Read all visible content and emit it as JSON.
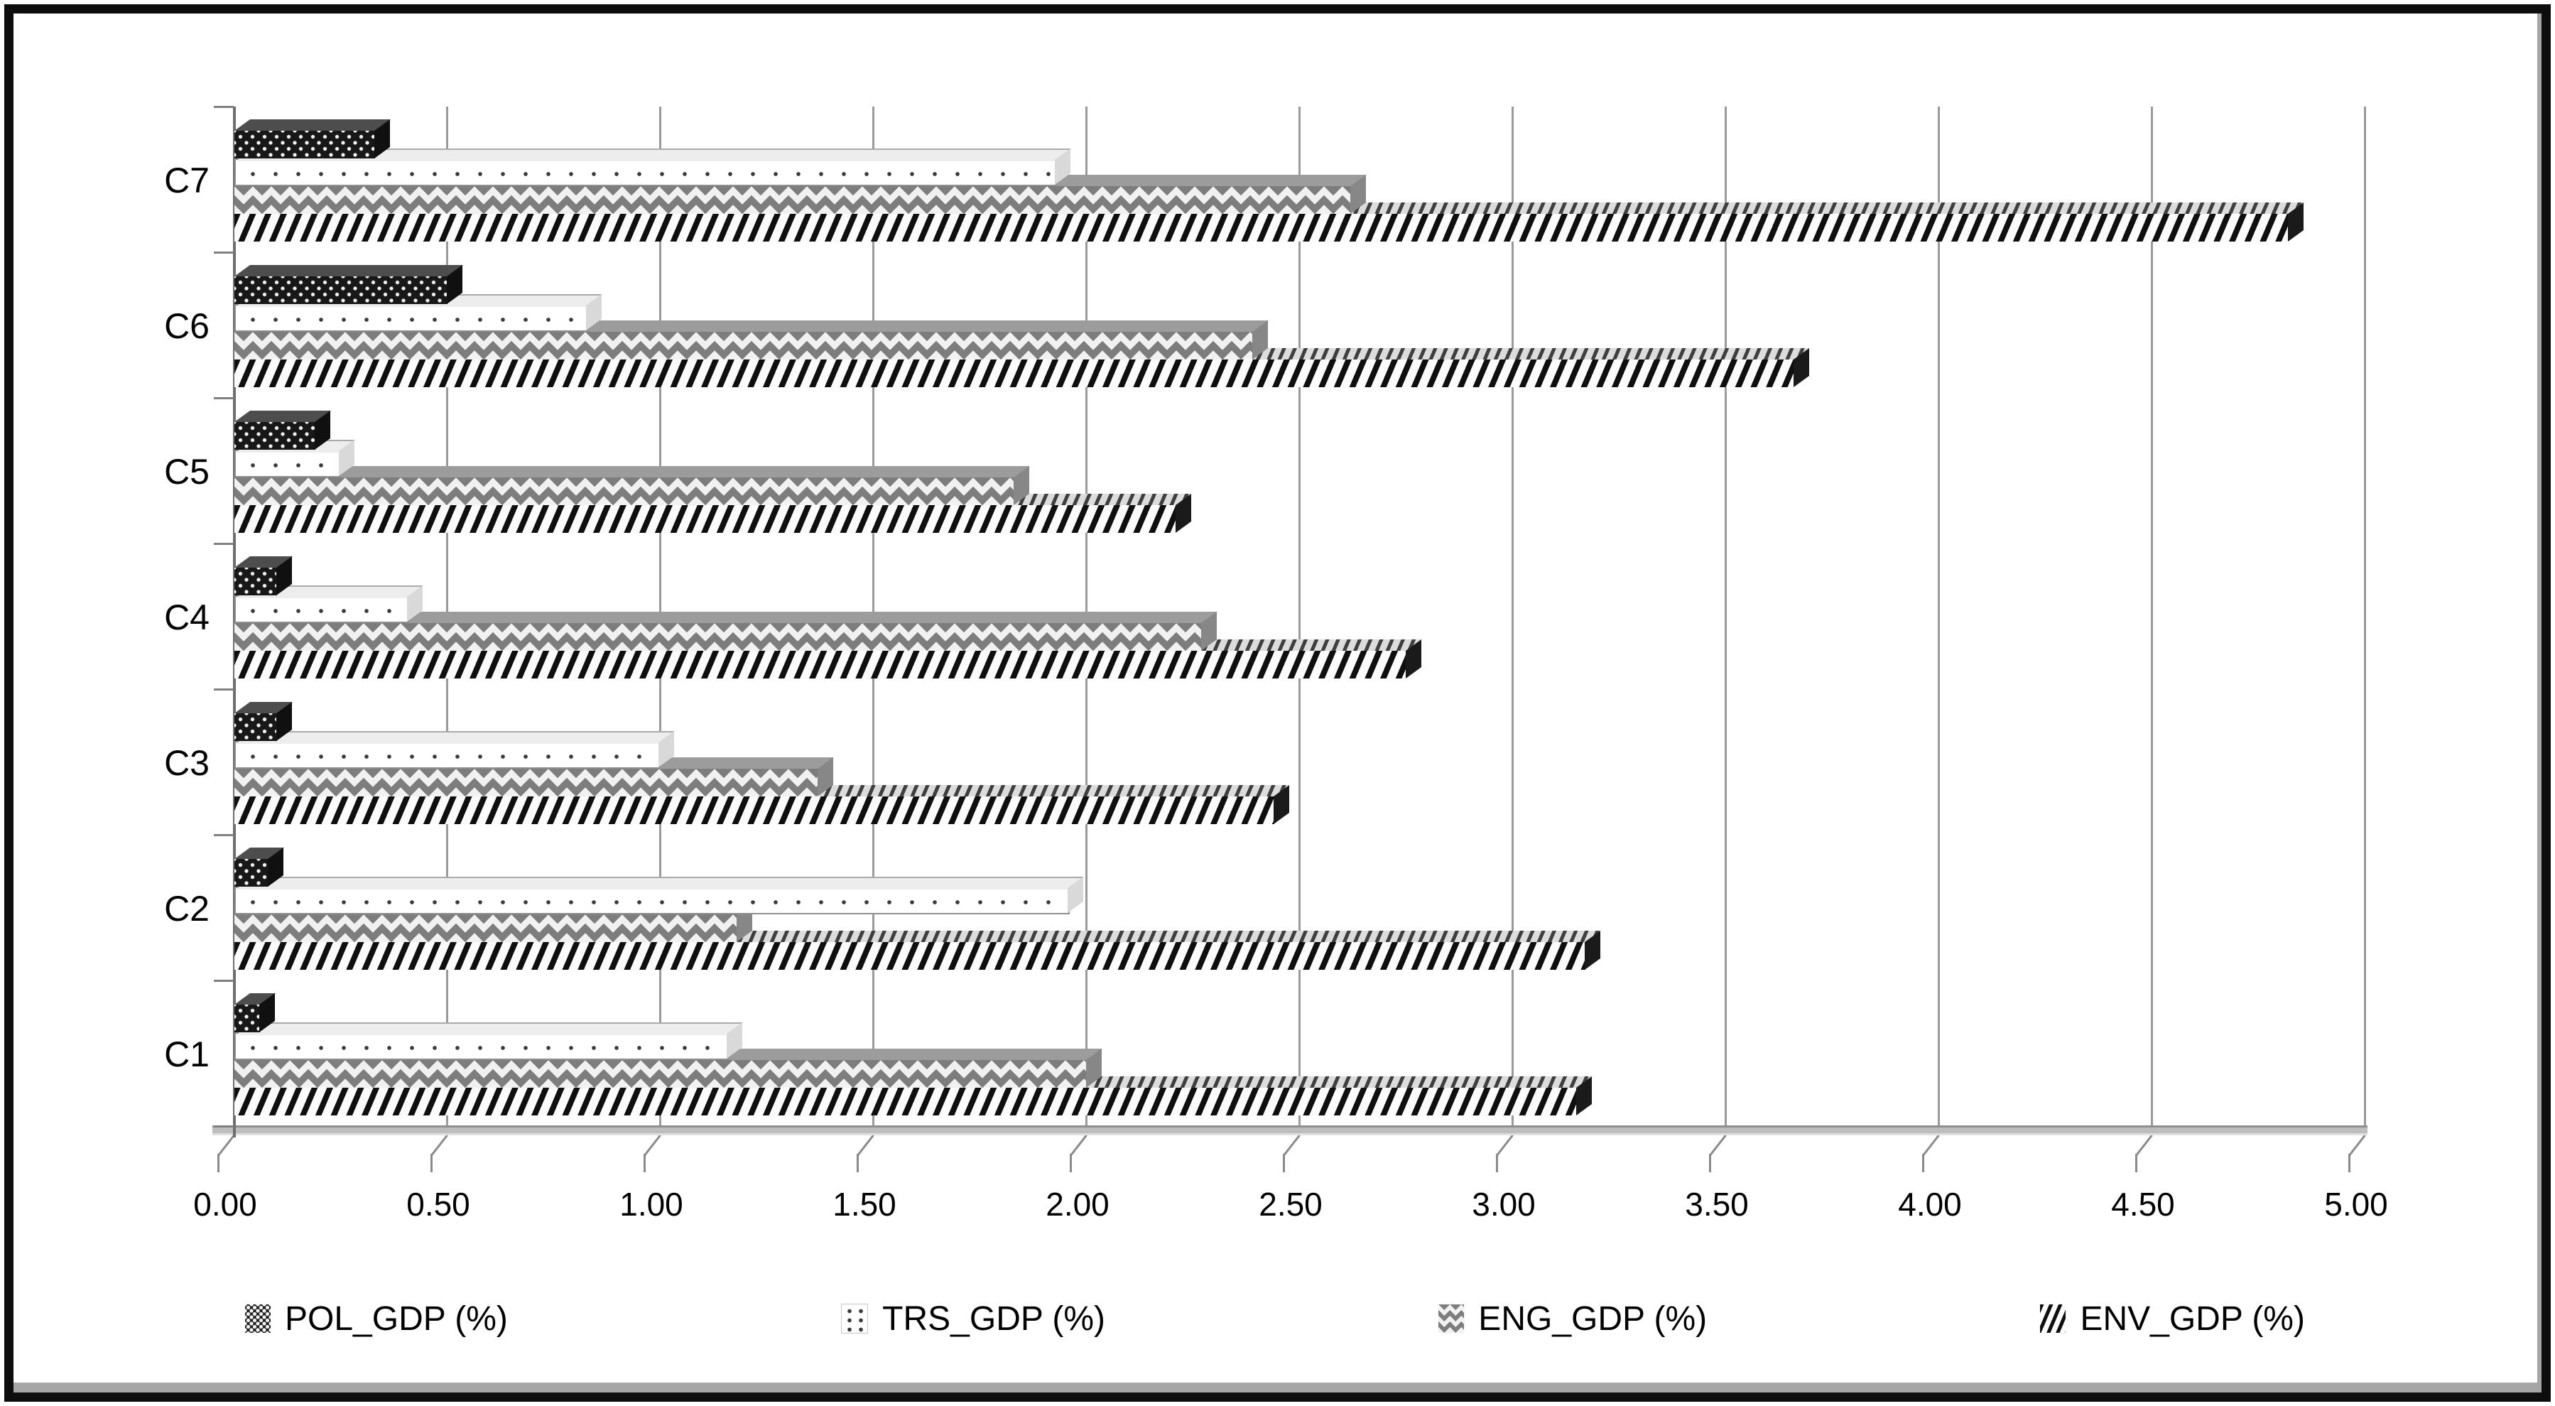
{
  "chart_data": {
    "type": "bar",
    "orientation": "horizontal",
    "style": "3d-excel-grayscale-patterns",
    "title": "",
    "xlabel": "",
    "ylabel": "",
    "xlim": [
      0,
      5
    ],
    "x_tick_step": 0.5,
    "x_tick_labels": [
      "0.00",
      "0.50",
      "1.00",
      "1.50",
      "2.00",
      "2.50",
      "3.00",
      "3.50",
      "4.00",
      "4.50",
      "5.00"
    ],
    "grid": true,
    "legend_position": "bottom",
    "categories": [
      "C1",
      "C2",
      "C3",
      "C4",
      "C5",
      "C6",
      "C7"
    ],
    "categories_display_top_to_bottom": [
      "C7",
      "C6",
      "C5",
      "C4",
      "C3",
      "C2",
      "C1"
    ],
    "series": [
      {
        "name": "POL_GDP (%)",
        "pattern": "dark-trellis",
        "values": [
          0.06,
          0.08,
          0.1,
          0.1,
          0.19,
          0.5,
          0.33
        ]
      },
      {
        "name": "TRS_GDP (%)",
        "pattern": "sparse-dots-white",
        "values": [
          1.16,
          1.96,
          1.0,
          0.41,
          0.25,
          0.83,
          1.93
        ]
      },
      {
        "name": "ENG_GDP (%)",
        "pattern": "gray-zigzag",
        "values": [
          2.0,
          1.18,
          1.37,
          2.27,
          1.83,
          2.39,
          2.62
        ]
      },
      {
        "name": "ENV_GDP (%)",
        "pattern": "black-diagonal",
        "values": [
          3.15,
          3.17,
          2.44,
          2.75,
          2.21,
          3.66,
          4.82
        ]
      }
    ],
    "colors": {
      "grid": "#9a9a9a",
      "axis": "#6e6e6e",
      "text": "#000000",
      "bar_dark": "#181818",
      "bar_dot_fill": "#ffffff",
      "bar_zigzag": "#7d7d7d",
      "bar_stripe": "#0f0f0f",
      "frame_border": "#0d0d0d"
    }
  }
}
